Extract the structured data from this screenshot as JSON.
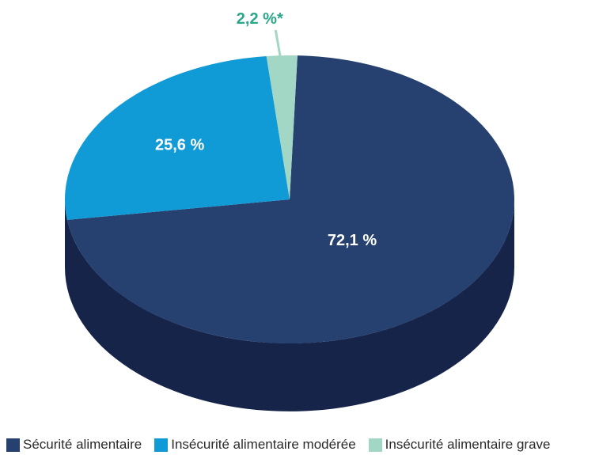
{
  "chart_data": {
    "type": "pie",
    "title": "",
    "categories": [
      "Sécurité alimentaire",
      "Insécurité alimentaire modérée",
      "Insécurité alimentaire grave"
    ],
    "values": [
      72.1,
      25.6,
      2.2
    ],
    "data_labels": [
      "72,1 %",
      "25,6 %",
      "2,2 %*"
    ],
    "colors": [
      "#26416f",
      "#109bd7",
      "#a3d7c5"
    ],
    "side_color": "#162449",
    "label_colors": [
      "#ffffff",
      "#ffffff",
      "#2aa68a"
    ],
    "legend_position": "bottom",
    "style": "3d"
  },
  "legend": {
    "items": [
      {
        "label": "Sécurité alimentaire",
        "color": "#26416f"
      },
      {
        "label": "Insécurité alimentaire modérée",
        "color": "#109bd7"
      },
      {
        "label": "Insécurité alimentaire grave",
        "color": "#a3d7c5"
      }
    ]
  }
}
